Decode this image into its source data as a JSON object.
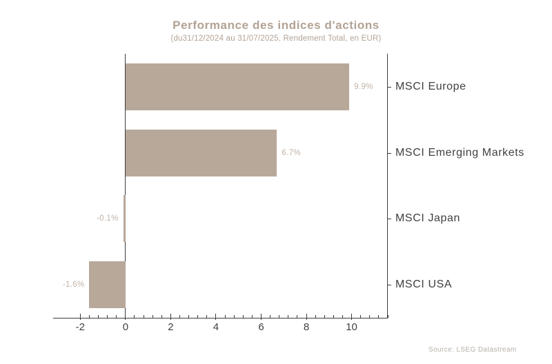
{
  "source": "Source: LSEG Datastream",
  "colors": {
    "bar": "#b8a89a",
    "title": "#b2a294",
    "value_label": "#c1b3a5",
    "axis": "#3c3c3c",
    "text": "#3f3f3f",
    "source": "#b6b0a8",
    "background": "#ffffff"
  },
  "chart_data": {
    "type": "bar",
    "orientation": "horizontal",
    "title": "Performance des indices d'actions",
    "subtitle": "(du31/12/2024 au 31/07/2025, Rendement Total, en EUR)",
    "categories": [
      "MSCI Europe",
      "MSCI Emerging Markets",
      "MSCI Japan",
      "MSCI USA"
    ],
    "values": [
      9.9,
      6.7,
      -0.1,
      -1.6
    ],
    "value_labels": [
      "9.9%",
      "6.7%",
      "-0.1%",
      "-1.6%"
    ],
    "unit": "%",
    "xlim": [
      -3.2,
      11.6
    ],
    "x_major_ticks": [
      -2,
      0,
      2,
      4,
      6,
      8,
      10
    ],
    "x_minor_tick_step": 0.4,
    "grid": false,
    "legend": null,
    "category_axis_side": "right",
    "zero_line": true
  }
}
